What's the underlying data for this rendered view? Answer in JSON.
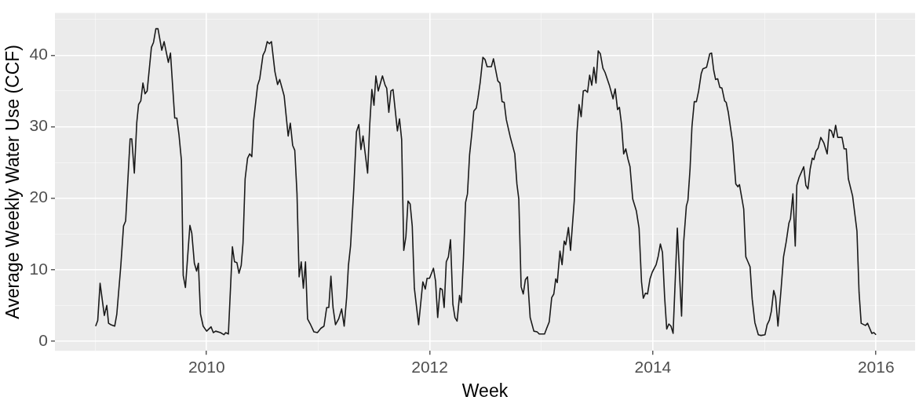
{
  "chart_data": {
    "type": "line",
    "xlabel": "Week",
    "ylabel": "Average Weekly Water Use (CCF)",
    "xlim": [
      2008.64,
      2016.35
    ],
    "xticks": [
      {
        "value": 2009,
        "label": null
      },
      2010,
      {
        "value": 2011,
        "label": null
      },
      2012,
      {
        "value": 2013,
        "label": null
      },
      2014,
      {
        "value": 2015,
        "label": null
      },
      2016
    ],
    "ylim": [
      -1.35,
      45.9
    ],
    "yticks": [
      0,
      {
        "value": 5,
        "label": null
      },
      10,
      {
        "value": 15,
        "label": null
      },
      20,
      {
        "value": 25,
        "label": null
      },
      30,
      {
        "value": 35,
        "label": null
      },
      40,
      {
        "value": 45,
        "label": null
      }
    ],
    "grid": true,
    "legend": false,
    "marker": "none",
    "line_style": "solid",
    "series": [
      {
        "color": "#1a1a1a",
        "x": [
          2009.005,
          2009.024,
          2009.045,
          2009.083,
          2009.105,
          2009.121,
          2009.143,
          2009.176,
          2009.195,
          2009.231,
          2009.255,
          2009.274,
          2009.314,
          2009.329,
          2009.352,
          2009.374,
          2009.39,
          2009.41,
          2009.429,
          2009.448,
          2009.467,
          2009.505,
          2009.524,
          2009.545,
          2009.564,
          2009.598,
          2009.619,
          2009.657,
          2009.676,
          2009.714,
          2009.733,
          2009.752,
          2009.774,
          2009.79,
          2009.81,
          2009.85,
          2009.867,
          2009.89,
          2009.91,
          2009.926,
          2009.945,
          2009.969,
          2010.0,
          2010.04,
          2010.06,
          2010.081,
          2010.124,
          2010.155,
          2010.171,
          2010.195,
          2010.231,
          2010.25,
          2010.271,
          2010.29,
          2010.31,
          2010.326,
          2010.345,
          2010.367,
          2010.386,
          2010.405,
          2010.421,
          2010.457,
          2010.476,
          2010.505,
          2010.524,
          2010.543,
          2010.562,
          2010.581,
          2010.612,
          2010.636,
          2010.655,
          2010.695,
          2010.731,
          2010.75,
          2010.771,
          2010.79,
          2010.81,
          2010.829,
          2010.848,
          2010.867,
          2010.886,
          2010.905,
          2010.929,
          2010.962,
          2010.993,
          2011.024,
          2011.052,
          2011.076,
          2011.095,
          2011.114,
          2011.133,
          2011.155,
          2011.183,
          2011.21,
          2011.233,
          2011.255,
          2011.271,
          2011.29,
          2011.319,
          2011.343,
          2011.364,
          2011.383,
          2011.402,
          2011.443,
          2011.462,
          2011.481,
          2011.5,
          2011.517,
          2011.538,
          2011.576,
          2011.6,
          2011.614,
          2011.633,
          2011.652,
          2011.671,
          2011.71,
          2011.729,
          2011.748,
          2011.767,
          2011.786,
          2011.805,
          2011.824,
          2011.843,
          2011.862,
          2011.9,
          2011.938,
          2011.96,
          2011.976,
          2011.998,
          2012.033,
          2012.052,
          2012.071,
          2012.093,
          2012.112,
          2012.129,
          2012.148,
          2012.167,
          2012.186,
          2012.207,
          2012.226,
          2012.245,
          2012.267,
          2012.283,
          2012.302,
          2012.321,
          2012.338,
          2012.357,
          2012.376,
          2012.395,
          2012.417,
          2012.433,
          2012.452,
          2012.476,
          2012.495,
          2012.514,
          2012.552,
          2012.571,
          2012.61,
          2012.629,
          2012.648,
          2012.667,
          2012.686,
          2012.724,
          2012.762,
          2012.781,
          2012.798,
          2012.819,
          2012.838,
          2012.857,
          2012.876,
          2012.9,
          2012.933,
          2012.962,
          2012.981,
          2013.029,
          2013.048,
          2013.071,
          2013.093,
          2013.112,
          2013.129,
          2013.143,
          2013.167,
          2013.186,
          2013.205,
          2013.219,
          2013.243,
          2013.262,
          2013.295,
          2013.319,
          2013.338,
          2013.357,
          2013.376,
          2013.395,
          2013.414,
          2013.433,
          2013.452,
          2013.471,
          2013.49,
          2013.51,
          2013.529,
          2013.552,
          2013.571,
          2013.61,
          2013.643,
          2013.662,
          2013.683,
          2013.7,
          2013.719,
          2013.738,
          2013.757,
          2013.776,
          2013.795,
          2013.819,
          2013.852,
          2013.876,
          2013.898,
          2013.914,
          2013.933,
          2013.952,
          2013.974,
          2013.993,
          2014.029,
          2014.048,
          2014.067,
          2014.086,
          2014.105,
          2014.124,
          2014.143,
          2014.162,
          2014.181,
          2014.219,
          2014.257,
          2014.276,
          2014.3,
          2014.314,
          2014.333,
          2014.35,
          2014.371,
          2014.39,
          2014.41,
          2014.433,
          2014.448,
          2014.481,
          2014.51,
          2014.526,
          2014.545,
          2014.562,
          2014.581,
          2014.6,
          2014.619,
          2014.643,
          2014.657,
          2014.676,
          2014.714,
          2014.743,
          2014.762,
          2014.776,
          2014.795,
          2014.814,
          2014.833,
          2014.852,
          2014.871,
          2014.89,
          2014.914,
          2014.945,
          2014.969,
          2015.005,
          2015.024,
          2015.043,
          2015.062,
          2015.083,
          2015.1,
          2015.121,
          2015.148,
          2015.171,
          2015.195,
          2015.219,
          2015.233,
          2015.255,
          2015.276,
          2015.29,
          2015.31,
          2015.333,
          2015.352,
          2015.371,
          2015.39,
          2015.41,
          2015.429,
          2015.443,
          2015.462,
          2015.481,
          2015.505,
          2015.533,
          2015.562,
          2015.581,
          2015.6,
          2015.619,
          2015.638,
          2015.657,
          2015.695,
          2015.714,
          2015.733,
          2015.752,
          2015.79,
          2015.829,
          2015.848,
          2015.867,
          2015.905,
          2015.924,
          2015.943,
          2015.962,
          2015.981,
          2016.0
        ],
        "values": [
          2.1,
          2.9,
          8.1,
          3.6,
          5.0,
          2.5,
          2.3,
          2.1,
          3.8,
          10.6,
          16.1,
          16.8,
          28.3,
          28.3,
          23.5,
          30.6,
          33.1,
          33.6,
          36.1,
          34.6,
          35.0,
          41.1,
          41.8,
          43.7,
          43.7,
          40.7,
          41.9,
          39.0,
          40.3,
          31.2,
          31.2,
          28.9,
          25.3,
          9.2,
          7.5,
          16.2,
          15.1,
          10.9,
          9.8,
          10.9,
          3.8,
          2.1,
          1.4,
          2.0,
          1.2,
          1.4,
          1.2,
          0.9,
          1.2,
          1.0,
          13.2,
          11.1,
          11.0,
          9.5,
          10.6,
          13.7,
          22.7,
          25.6,
          26.2,
          25.8,
          30.8,
          35.8,
          36.7,
          40.0,
          40.6,
          41.9,
          41.6,
          41.9,
          37.7,
          35.9,
          36.6,
          34.3,
          28.7,
          30.5,
          27.4,
          26.7,
          20.6,
          9.0,
          11.1,
          7.4,
          11.1,
          3.1,
          2.4,
          1.3,
          1.2,
          1.8,
          2.1,
          4.7,
          4.7,
          9.1,
          4.7,
          2.3,
          3.1,
          4.5,
          2.1,
          6.1,
          10.6,
          13.3,
          21.3,
          29.3,
          30.3,
          26.8,
          28.7,
          23.5,
          30.3,
          35.2,
          33.0,
          37.1,
          35.0,
          37.1,
          35.8,
          35.4,
          32.0,
          35.0,
          35.2,
          29.4,
          31.1,
          28.2,
          12.7,
          14.6,
          19.6,
          19.2,
          16.1,
          7.4,
          2.3,
          8.3,
          7.3,
          8.8,
          8.8,
          10.2,
          8.4,
          3.3,
          7.4,
          7.2,
          4.7,
          11.1,
          11.8,
          14.2,
          5.2,
          3.3,
          2.8,
          6.4,
          5.4,
          11.6,
          19.4,
          20.6,
          26.1,
          28.9,
          32.2,
          32.6,
          34.1,
          36.2,
          39.7,
          39.4,
          38.4,
          38.4,
          39.5,
          36.4,
          36.1,
          33.5,
          33.4,
          31.0,
          28.4,
          26.2,
          22.0,
          19.9,
          7.6,
          6.6,
          8.6,
          9.0,
          3.3,
          1.4,
          1.3,
          1.0,
          1.0,
          1.8,
          2.7,
          6.1,
          6.6,
          8.7,
          8.2,
          12.6,
          10.7,
          14.0,
          13.5,
          15.9,
          12.7,
          19.6,
          29.1,
          33.1,
          31.4,
          35.0,
          35.1,
          34.8,
          37.2,
          35.8,
          38.3,
          36.1,
          40.6,
          40.2,
          38.2,
          37.6,
          35.8,
          33.9,
          35.3,
          32.4,
          32.7,
          30.3,
          26.2,
          26.9,
          25.5,
          24.4,
          19.9,
          18.2,
          15.8,
          8.3,
          6.0,
          6.7,
          6.6,
          8.7,
          9.6,
          10.7,
          11.9,
          13.6,
          12.4,
          6.2,
          1.7,
          2.4,
          2.1,
          1.1,
          15.8,
          3.5,
          13.9,
          18.9,
          19.7,
          24.1,
          30.0,
          33.5,
          33.5,
          35.0,
          37.4,
          38.1,
          38.3,
          40.2,
          40.3,
          37.9,
          36.6,
          36.7,
          35.5,
          35.4,
          33.6,
          33.4,
          32.0,
          27.9,
          22.0,
          21.6,
          21.9,
          20.2,
          18.5,
          11.8,
          11.1,
          10.4,
          5.9,
          2.6,
          0.9,
          0.8,
          0.9,
          2.3,
          2.9,
          4.2,
          7.1,
          6.1,
          2.1,
          7.1,
          11.8,
          13.9,
          16.5,
          17.1,
          20.6,
          13.3,
          21.8,
          22.9,
          23.7,
          24.4,
          21.8,
          21.3,
          24.1,
          25.6,
          25.4,
          26.6,
          27.0,
          28.5,
          27.7,
          26.2,
          29.6,
          29.4,
          28.5,
          30.2,
          28.5,
          28.5,
          26.9,
          26.9,
          22.7,
          20.3,
          15.4,
          6.8,
          2.5,
          2.2,
          2.5,
          1.8,
          1.1,
          1.2,
          0.9
        ]
      }
    ]
  }
}
